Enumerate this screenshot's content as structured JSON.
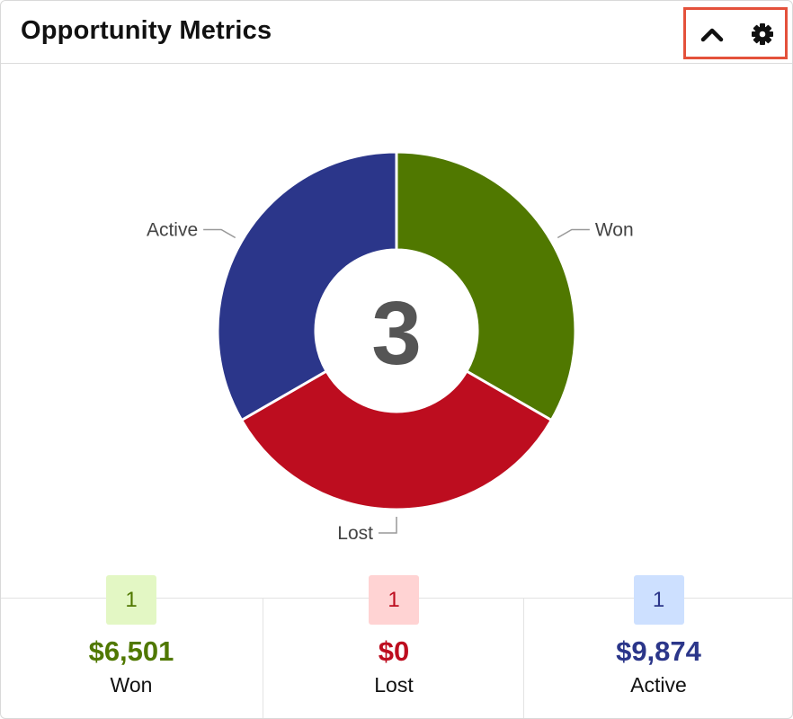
{
  "header": {
    "title": "Opportunity Metrics"
  },
  "icons": {
    "collapse": "chevron-up-icon",
    "settings": "gear-icon"
  },
  "colors": {
    "won": "#507800",
    "lost": "#bd0d1f",
    "active": "#2b368a",
    "won_badge_bg": "#e3f7c4",
    "lost_badge_bg": "#ffd3d3",
    "active_badge_bg": "#cde0ff",
    "center_text": "#555555",
    "highlight_border": "#e4513b"
  },
  "chart_data": {
    "type": "pie",
    "center_value": "3",
    "slices": [
      {
        "label": "Won",
        "value": 1
      },
      {
        "label": "Lost",
        "value": 1
      },
      {
        "label": "Active",
        "value": 1
      }
    ]
  },
  "stats": [
    {
      "count": "1",
      "amount": "$6,501",
      "label": "Won"
    },
    {
      "count": "1",
      "amount": "$0",
      "label": "Lost"
    },
    {
      "count": "1",
      "amount": "$9,874",
      "label": "Active"
    }
  ]
}
